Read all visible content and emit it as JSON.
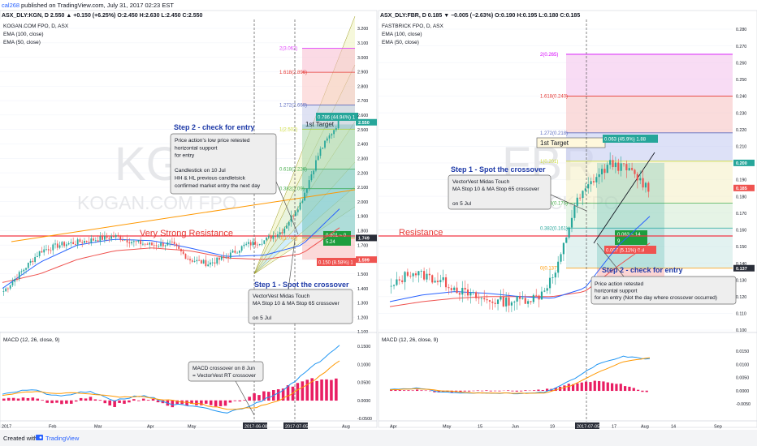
{
  "header": {
    "publisher_user": "cal268",
    "publisher_text": "published on TradingView.com, July 31, 2017 02:23 EST"
  },
  "footer": {
    "created_with": "Created with",
    "brand": "TradingView"
  },
  "colors": {
    "up": "#26a69a",
    "down": "#ef5350",
    "ema100": "#ef5350",
    "ema50": "#2962ff",
    "resistance": "#f23645",
    "macd": "#2196f3",
    "signal": "#ff9800",
    "hist": "#e91e63",
    "label_blue": "#1e3aa8",
    "label_red": "#e53935",
    "trend_orange": "#ff9800"
  },
  "panels": {
    "left": {
      "symbol_line": "ASX_DLY:KGN, D  2.550 ▲ +0.150 (+6.25%)  O:2.450  H:2.630  L:2.450  C:2.550",
      "instrument": "KOGAN.COM FPO, D, ASX",
      "ema100": "EMA (100, close)",
      "ema50": "EMA (50, close)",
      "watermark_ticker": "KGN",
      "watermark_name": "KOGAN.COM FPO",
      "resistance_label": "Very Strong Resistance",
      "step2_title": "Step 2 - check for entry",
      "step2_lines": [
        "Price action's low price retested",
        "horizontal support",
        "for entry",
        "",
        "Candlestick on 10 Jul",
        "HH & HL previous candletsick",
        "confirmed market entry the next day"
      ],
      "step1_title": "Step 1 - Spot the crossover",
      "step1_lines": [
        "VectorVest Midas Touch",
        "MA Stop 10 & MA Stop 65 crossover",
        "",
        "on 5 Jul"
      ],
      "macd_title": "MACD (12, 26, close, 9)",
      "macd_note_lines": [
        "MACD crossover on 8 Jun",
        "= VectorVest RT crossover"
      ],
      "target_label": "1st Target",
      "fib_labels": [
        "2(3.062)",
        "1.618(2.896)",
        "1.272(2.669)",
        "1(2.502)",
        "0.618(2.226)",
        "0.382(2.09)",
        "0(1.749)"
      ],
      "fib_values": [
        3.062,
        2.896,
        2.669,
        2.502,
        2.226,
        2.09,
        1.749
      ],
      "position_profit": "0.786 (44.94%) 1",
      "position_loss": "0.150 (8.58%) 1",
      "position_mid": [
        "0.801 ~ 0",
        "5.24"
      ],
      "price_axis": [
        "3.200",
        "3.100",
        "3.000",
        "2.900",
        "2.800",
        "2.700",
        "2.600",
        "2.500",
        "2.400",
        "2.300",
        "2.200",
        "2.100",
        "2.000",
        "1.900",
        "1.800",
        "1.700",
        "1.600",
        "1.500",
        "1.400",
        "1.300",
        "1.200",
        "1.100"
      ],
      "price_tags": [
        "2.550",
        "1.749",
        "1.599"
      ],
      "macd_axis": [
        "0.1500",
        "0.1000",
        "0.0500",
        "0.0000",
        "-0.0500"
      ],
      "time_axis": [
        "2017",
        "Feb",
        "Mar",
        "Apr",
        "May",
        "2017-06-08",
        "2017-07-05",
        "Aug"
      ]
    },
    "right": {
      "symbol_line": "ASX_DLY:FBR, D  0.185 ▼ −0.005 (−2.63%)  O:0.190  H:0.195  L:0.180  C:0.185",
      "instrument": "FASTBRICK FPO, D, ASX",
      "ema100": "EMA (100, close)",
      "ema50": "EMA (50, close)",
      "watermark_ticker": "FBR",
      "watermark_name": "FASTBRICK FPO",
      "resistance_label": "Resistance",
      "step1_title": "Step 1 - Spot the crossover",
      "step1_lines": [
        "VectorVest Midas Touch",
        "MA Stop 10 & MA Stop 65 crossover",
        "",
        "on 5 Jul"
      ],
      "step2_title": "Step 2 - check for entry",
      "step2_lines": [
        "Price action retested",
        "horizontal support",
        "for an entry (Not the day where crossover occurred)"
      ],
      "macd_title": "MACD (12, 26, close, 9)",
      "target_label": "1st Target",
      "fib_labels": [
        "2(0.265)",
        "1.618(0.240)",
        "1.272(0.218)",
        "1(0.201)",
        "0.618(0.176)",
        "0.382(0.161)",
        "0(0.137)"
      ],
      "fib_values": [
        0.265,
        0.24,
        0.218,
        0.201,
        0.176,
        0.161,
        0.137
      ],
      "position_profit": "0.063 (45.9%) 1.88",
      "position_loss": "0.007 (5.11%) 0.9",
      "position_mid": [
        "0.063 ~ 14",
        "9"
      ],
      "price_axis": [
        "0.280",
        "0.270",
        "0.260",
        "0.250",
        "0.240",
        "0.230",
        "0.220",
        "0.210",
        "0.200",
        "0.190",
        "0.180",
        "0.170",
        "0.160",
        "0.150",
        "0.140",
        "0.130",
        "0.120",
        "0.110",
        "0.100"
      ],
      "price_tags": [
        "0.200",
        "0.185",
        "0.137"
      ],
      "macd_axis": [
        "0.0150",
        "0.0100",
        "0.0050",
        "0.0000",
        "-0.0050"
      ],
      "time_axis": [
        "Apr",
        "May",
        "15",
        "Jun",
        "19",
        "2017-07-05",
        "17",
        "Aug",
        "14",
        "Sep"
      ]
    }
  },
  "chart_data": [
    {
      "type": "candlestick",
      "title": "KOGAN.COM FPO, D, ASX",
      "ylim": [
        1.1,
        3.2
      ],
      "x_range": [
        "2016-12-20",
        "2017-08-10"
      ],
      "resistance": 1.749,
      "entry_date": "2017-07-05",
      "macd_cross_date": "2017-06-08",
      "ohlc_monthly_approx": [
        {
          "date": "2017-01",
          "close": 1.7
        },
        {
          "date": "2017-02",
          "close": 1.72
        },
        {
          "date": "2017-03",
          "close": 1.76
        },
        {
          "date": "2017-04",
          "close": 1.71
        },
        {
          "date": "2017-05",
          "close": 1.6
        },
        {
          "date": "2017-06",
          "close": 1.72
        },
        {
          "date": "2017-07",
          "close": 2.55
        }
      ],
      "last": {
        "open": 2.45,
        "high": 2.63,
        "low": 2.45,
        "close": 2.55
      }
    },
    {
      "type": "candlestick",
      "title": "FASTBRICK FPO, D, ASX",
      "ylim": [
        0.1,
        0.28
      ],
      "x_range": [
        "2017-03-25",
        "2017-09-10"
      ],
      "resistance": 0.137,
      "entry_date": "2017-07-05",
      "ohlc_monthly_approx": [
        {
          "date": "2017-04",
          "close": 0.13
        },
        {
          "date": "2017-05",
          "close": 0.12
        },
        {
          "date": "2017-06",
          "close": 0.118
        },
        {
          "date": "2017-07",
          "close": 0.19
        }
      ],
      "last": {
        "open": 0.19,
        "high": 0.195,
        "low": 0.18,
        "close": 0.185
      }
    }
  ]
}
